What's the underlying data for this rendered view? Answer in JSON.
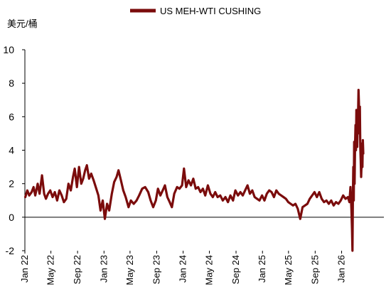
{
  "chart_data": {
    "type": "line",
    "unit_label": "美元/桶",
    "legend_position": "top-center",
    "grid": false,
    "ylim": [
      -2,
      10
    ],
    "yticks": [
      "-2",
      "0",
      "2",
      "4",
      "6",
      "8",
      "10"
    ],
    "xlim": [
      "2022-01-01",
      "2026-07-15"
    ],
    "xticks": [
      {
        "date": "2022-01-01",
        "label": "Jan 22"
      },
      {
        "date": "2022-05-01",
        "label": "May 22"
      },
      {
        "date": "2022-09-01",
        "label": "Sep 22"
      },
      {
        "date": "2023-01-01",
        "label": "Jan 23"
      },
      {
        "date": "2023-05-01",
        "label": "May 23"
      },
      {
        "date": "2023-09-01",
        "label": "Sep 23"
      },
      {
        "date": "2024-01-01",
        "label": "Jan 24"
      },
      {
        "date": "2024-05-01",
        "label": "May 24"
      },
      {
        "date": "2024-09-01",
        "label": "Sep 24"
      },
      {
        "date": "2025-01-01",
        "label": "Jan 25"
      },
      {
        "date": "2025-05-01",
        "label": "May 25"
      },
      {
        "date": "2025-09-01",
        "label": "Sep 25"
      },
      {
        "date": "2026-01-01",
        "label": "Jan 26"
      }
    ],
    "series": [
      {
        "name": "US MEH-WTI CUSHING",
        "color": "#7b0c0c",
        "points": [
          [
            "2022-01-03",
            1.2
          ],
          [
            "2022-01-12",
            1.6
          ],
          [
            "2022-01-21",
            1.3
          ],
          [
            "2022-02-01",
            1.5
          ],
          [
            "2022-02-10",
            1.8
          ],
          [
            "2022-02-18",
            1.3
          ],
          [
            "2022-03-01",
            2.0
          ],
          [
            "2022-03-10",
            1.4
          ],
          [
            "2022-03-21",
            2.5
          ],
          [
            "2022-03-31",
            1.4
          ],
          [
            "2022-04-08",
            1.1
          ],
          [
            "2022-04-18",
            1.4
          ],
          [
            "2022-04-28",
            1.6
          ],
          [
            "2022-05-09",
            1.2
          ],
          [
            "2022-05-19",
            1.5
          ],
          [
            "2022-05-30",
            1.0
          ],
          [
            "2022-06-09",
            1.6
          ],
          [
            "2022-06-20",
            1.3
          ],
          [
            "2022-06-30",
            0.9
          ],
          [
            "2022-07-11",
            1.1
          ],
          [
            "2022-07-21",
            2.0
          ],
          [
            "2022-08-01",
            1.6
          ],
          [
            "2022-08-11",
            2.4
          ],
          [
            "2022-08-19",
            2.9
          ],
          [
            "2022-08-29",
            1.8
          ],
          [
            "2022-09-08",
            3.0
          ],
          [
            "2022-09-18",
            2.0
          ],
          [
            "2022-09-27",
            2.3
          ],
          [
            "2022-10-06",
            2.8
          ],
          [
            "2022-10-14",
            3.1
          ],
          [
            "2022-10-24",
            2.3
          ],
          [
            "2022-11-03",
            2.6
          ],
          [
            "2022-11-14",
            2.2
          ],
          [
            "2022-11-24",
            1.8
          ],
          [
            "2022-12-06",
            1.3
          ],
          [
            "2022-12-16",
            0.4
          ],
          [
            "2022-12-26",
            1.0
          ],
          [
            "2023-01-05",
            -0.1
          ],
          [
            "2023-01-15",
            0.8
          ],
          [
            "2023-01-25",
            0.4
          ],
          [
            "2023-02-06",
            1.4
          ],
          [
            "2023-02-17",
            2.1
          ],
          [
            "2023-02-28",
            2.4
          ],
          [
            "2023-03-09",
            2.8
          ],
          [
            "2023-03-20",
            2.2
          ],
          [
            "2023-03-31",
            1.6
          ],
          [
            "2023-04-11",
            1.2
          ],
          [
            "2023-04-24",
            0.6
          ],
          [
            "2023-05-05",
            1.0
          ],
          [
            "2023-05-18",
            0.8
          ],
          [
            "2023-05-31",
            1.0
          ],
          [
            "2023-06-12",
            1.3
          ],
          [
            "2023-06-26",
            1.7
          ],
          [
            "2023-07-10",
            1.8
          ],
          [
            "2023-07-24",
            1.5
          ],
          [
            "2023-08-04",
            1.0
          ],
          [
            "2023-08-16",
            0.6
          ],
          [
            "2023-08-28",
            1.0
          ],
          [
            "2023-09-07",
            1.7
          ],
          [
            "2023-09-18",
            1.3
          ],
          [
            "2023-09-29",
            1.6
          ],
          [
            "2023-10-09",
            1.9
          ],
          [
            "2023-10-20",
            1.2
          ],
          [
            "2023-10-31",
            0.9
          ],
          [
            "2023-11-10",
            0.6
          ],
          [
            "2023-11-21",
            1.4
          ],
          [
            "2023-12-04",
            1.8
          ],
          [
            "2023-12-15",
            1.7
          ],
          [
            "2023-12-27",
            1.9
          ],
          [
            "2024-01-05",
            2.9
          ],
          [
            "2024-01-15",
            1.8
          ],
          [
            "2024-01-26",
            2.2
          ],
          [
            "2024-02-06",
            1.9
          ],
          [
            "2024-02-17",
            2.3
          ],
          [
            "2024-02-28",
            1.7
          ],
          [
            "2024-03-10",
            1.8
          ],
          [
            "2024-03-21",
            1.5
          ],
          [
            "2024-04-01",
            1.7
          ],
          [
            "2024-04-12",
            1.3
          ],
          [
            "2024-04-24",
            1.9
          ],
          [
            "2024-05-06",
            1.4
          ],
          [
            "2024-05-17",
            1.2
          ],
          [
            "2024-05-28",
            1.5
          ],
          [
            "2024-06-08",
            1.2
          ],
          [
            "2024-06-20",
            1.3
          ],
          [
            "2024-07-02",
            1.0
          ],
          [
            "2024-07-14",
            1.2
          ],
          [
            "2024-07-26",
            0.9
          ],
          [
            "2024-08-06",
            1.3
          ],
          [
            "2024-08-18",
            1.0
          ],
          [
            "2024-08-29",
            1.6
          ],
          [
            "2024-09-10",
            1.3
          ],
          [
            "2024-09-21",
            1.5
          ],
          [
            "2024-10-02",
            1.3
          ],
          [
            "2024-10-13",
            1.6
          ],
          [
            "2024-10-24",
            1.9
          ],
          [
            "2024-11-04",
            1.4
          ],
          [
            "2024-11-15",
            1.6
          ],
          [
            "2024-11-26",
            1.2
          ],
          [
            "2024-12-07",
            1.1
          ],
          [
            "2024-12-18",
            1.0
          ],
          [
            "2024-12-30",
            1.3
          ],
          [
            "2025-01-10",
            1.0
          ],
          [
            "2025-01-21",
            1.4
          ],
          [
            "2025-02-01",
            1.6
          ],
          [
            "2025-02-12",
            1.5
          ],
          [
            "2025-02-23",
            1.2
          ],
          [
            "2025-03-06",
            1.6
          ],
          [
            "2025-03-17",
            1.4
          ],
          [
            "2025-03-28",
            1.3
          ],
          [
            "2025-04-08",
            1.2
          ],
          [
            "2025-04-19",
            1.1
          ],
          [
            "2025-04-30",
            0.9
          ],
          [
            "2025-05-11",
            0.8
          ],
          [
            "2025-05-22",
            0.7
          ],
          [
            "2025-06-02",
            0.8
          ],
          [
            "2025-06-13",
            0.5
          ],
          [
            "2025-06-24",
            -0.1
          ],
          [
            "2025-07-05",
            0.6
          ],
          [
            "2025-07-16",
            0.7
          ],
          [
            "2025-07-27",
            0.8
          ],
          [
            "2025-08-07",
            1.1
          ],
          [
            "2025-08-18",
            1.3
          ],
          [
            "2025-08-29",
            1.5
          ],
          [
            "2025-09-09",
            1.2
          ],
          [
            "2025-09-20",
            1.5
          ],
          [
            "2025-10-01",
            1.1
          ],
          [
            "2025-10-12",
            0.9
          ],
          [
            "2025-10-23",
            1.0
          ],
          [
            "2025-11-03",
            0.8
          ],
          [
            "2025-11-14",
            1.0
          ],
          [
            "2025-11-25",
            0.7
          ],
          [
            "2025-12-06",
            0.9
          ],
          [
            "2025-12-17",
            0.8
          ],
          [
            "2025-12-28",
            1.0
          ],
          [
            "2026-01-08",
            1.3
          ],
          [
            "2026-01-19",
            1.1
          ],
          [
            "2026-01-30",
            1.2
          ],
          [
            "2026-02-06",
            0.9
          ],
          [
            "2026-02-11",
            1.8
          ],
          [
            "2026-02-15",
            0.5
          ],
          [
            "2026-02-18",
            -0.8
          ],
          [
            "2026-02-20",
            -2.0
          ],
          [
            "2026-02-22",
            1.2
          ],
          [
            "2026-02-24",
            3.0
          ],
          [
            "2026-02-26",
            1.0
          ],
          [
            "2026-02-28",
            4.5
          ],
          [
            "2026-03-02",
            2.0
          ],
          [
            "2026-03-04",
            4.2
          ],
          [
            "2026-03-06",
            5.5
          ],
          [
            "2026-03-08",
            4.0
          ],
          [
            "2026-03-10",
            6.4
          ],
          [
            "2026-03-12",
            5.0
          ],
          [
            "2026-03-14",
            4.2
          ],
          [
            "2026-03-16",
            5.6
          ],
          [
            "2026-03-18",
            6.2
          ],
          [
            "2026-03-20",
            7.6
          ],
          [
            "2026-03-22",
            6.8
          ],
          [
            "2026-03-24",
            5.0
          ],
          [
            "2026-03-26",
            6.6
          ],
          [
            "2026-03-28",
            4.2
          ],
          [
            "2026-03-30",
            3.4
          ],
          [
            "2026-04-01",
            2.4
          ],
          [
            "2026-04-03",
            3.2
          ],
          [
            "2026-04-05",
            4.4
          ],
          [
            "2026-04-07",
            3.0
          ],
          [
            "2026-04-09",
            4.6
          ],
          [
            "2026-04-11",
            3.8
          ]
        ]
      }
    ]
  }
}
